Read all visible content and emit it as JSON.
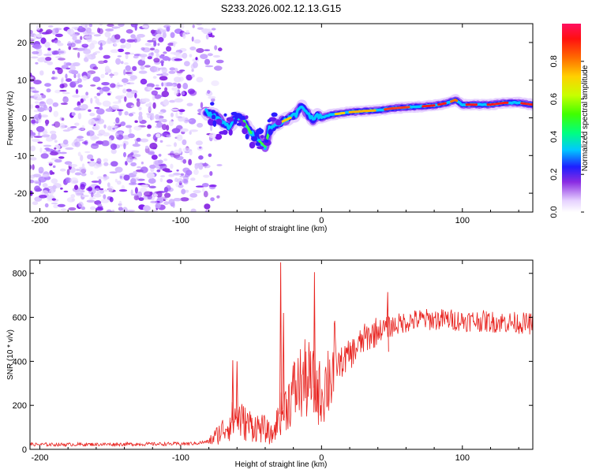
{
  "title": "S233.2026.002.12.13.G15",
  "chart_data": [
    {
      "type": "heatmap",
      "name": "spectrogram",
      "xlabel": "Height of straight line (km)",
      "ylabel": "Frequency (Hz)",
      "xlim": [
        -207,
        150
      ],
      "ylim": [
        -25,
        25
      ],
      "xticks": [
        -200,
        -100,
        0,
        100
      ],
      "yticks": [
        -20,
        -10,
        0,
        10,
        20
      ],
      "noise_region_km": [
        -207,
        -80
      ],
      "ridge": {
        "x": [
          -82,
          -75,
          -70,
          -65,
          -60,
          -55,
          -50,
          -45,
          -40,
          -37,
          -33,
          -28,
          -22,
          -18,
          -14,
          -12,
          -9,
          -6,
          -3,
          0,
          5,
          10,
          20,
          30,
          40,
          50,
          60,
          70,
          80,
          90,
          95,
          100,
          110,
          120,
          130,
          140,
          150
        ],
        "y": [
          1.5,
          0.5,
          -1.5,
          -2.5,
          0.5,
          -1.0,
          -4.0,
          -6.0,
          -7.5,
          -3.0,
          -2.0,
          -1.0,
          0.0,
          1.0,
          3.5,
          2.0,
          0.5,
          -0.5,
          0.5,
          0.0,
          0.7,
          1.0,
          1.5,
          1.8,
          2.0,
          2.5,
          2.8,
          3.0,
          3.3,
          4.0,
          4.8,
          3.5,
          3.5,
          3.5,
          4.0,
          4.0,
          3.5
        ]
      },
      "colorbar": {
        "label": "Normalized spectral amplitude",
        "ticks": [
          "0.0",
          "0.2",
          "0.4",
          "0.6",
          "0.8"
        ],
        "range": [
          0,
          1
        ]
      }
    },
    {
      "type": "line",
      "name": "snr",
      "xlabel": "Height of straight line (km)",
      "ylabel": "SNR (10 * v/v)",
      "xlim": [
        -207,
        150
      ],
      "ylim": [
        0,
        860
      ],
      "xticks": [
        -200,
        -100,
        0,
        100
      ],
      "yticks": [
        0,
        200,
        400,
        600,
        800
      ],
      "color": "#e8221e",
      "series": {
        "x": [
          -207,
          -180,
          -150,
          -120,
          -100,
          -90,
          -80,
          -75,
          -70,
          -65,
          -60,
          -55,
          -50,
          -45,
          -40,
          -35,
          -30,
          -25,
          -20,
          -15,
          -10,
          -5,
          0,
          5,
          10,
          15,
          20,
          25,
          30,
          40,
          50,
          60,
          70,
          80,
          90,
          100,
          110,
          120,
          130,
          140,
          150
        ],
        "y": [
          22,
          22,
          23,
          24,
          25,
          27,
          35,
          60,
          90,
          120,
          150,
          120,
          110,
          100,
          90,
          60,
          150,
          200,
          260,
          300,
          320,
          280,
          250,
          330,
          380,
          400,
          430,
          460,
          500,
          540,
          560,
          580,
          590,
          590,
          590,
          585,
          585,
          580,
          578,
          575,
          570
        ]
      },
      "spikes": [
        {
          "x": -63,
          "y": 405
        },
        {
          "x": -60,
          "y": 400
        },
        {
          "x": -29,
          "y": 850
        },
        {
          "x": -27,
          "y": 620
        },
        {
          "x": -5,
          "y": 805
        },
        {
          "x": 47,
          "y": 715
        }
      ]
    }
  ]
}
